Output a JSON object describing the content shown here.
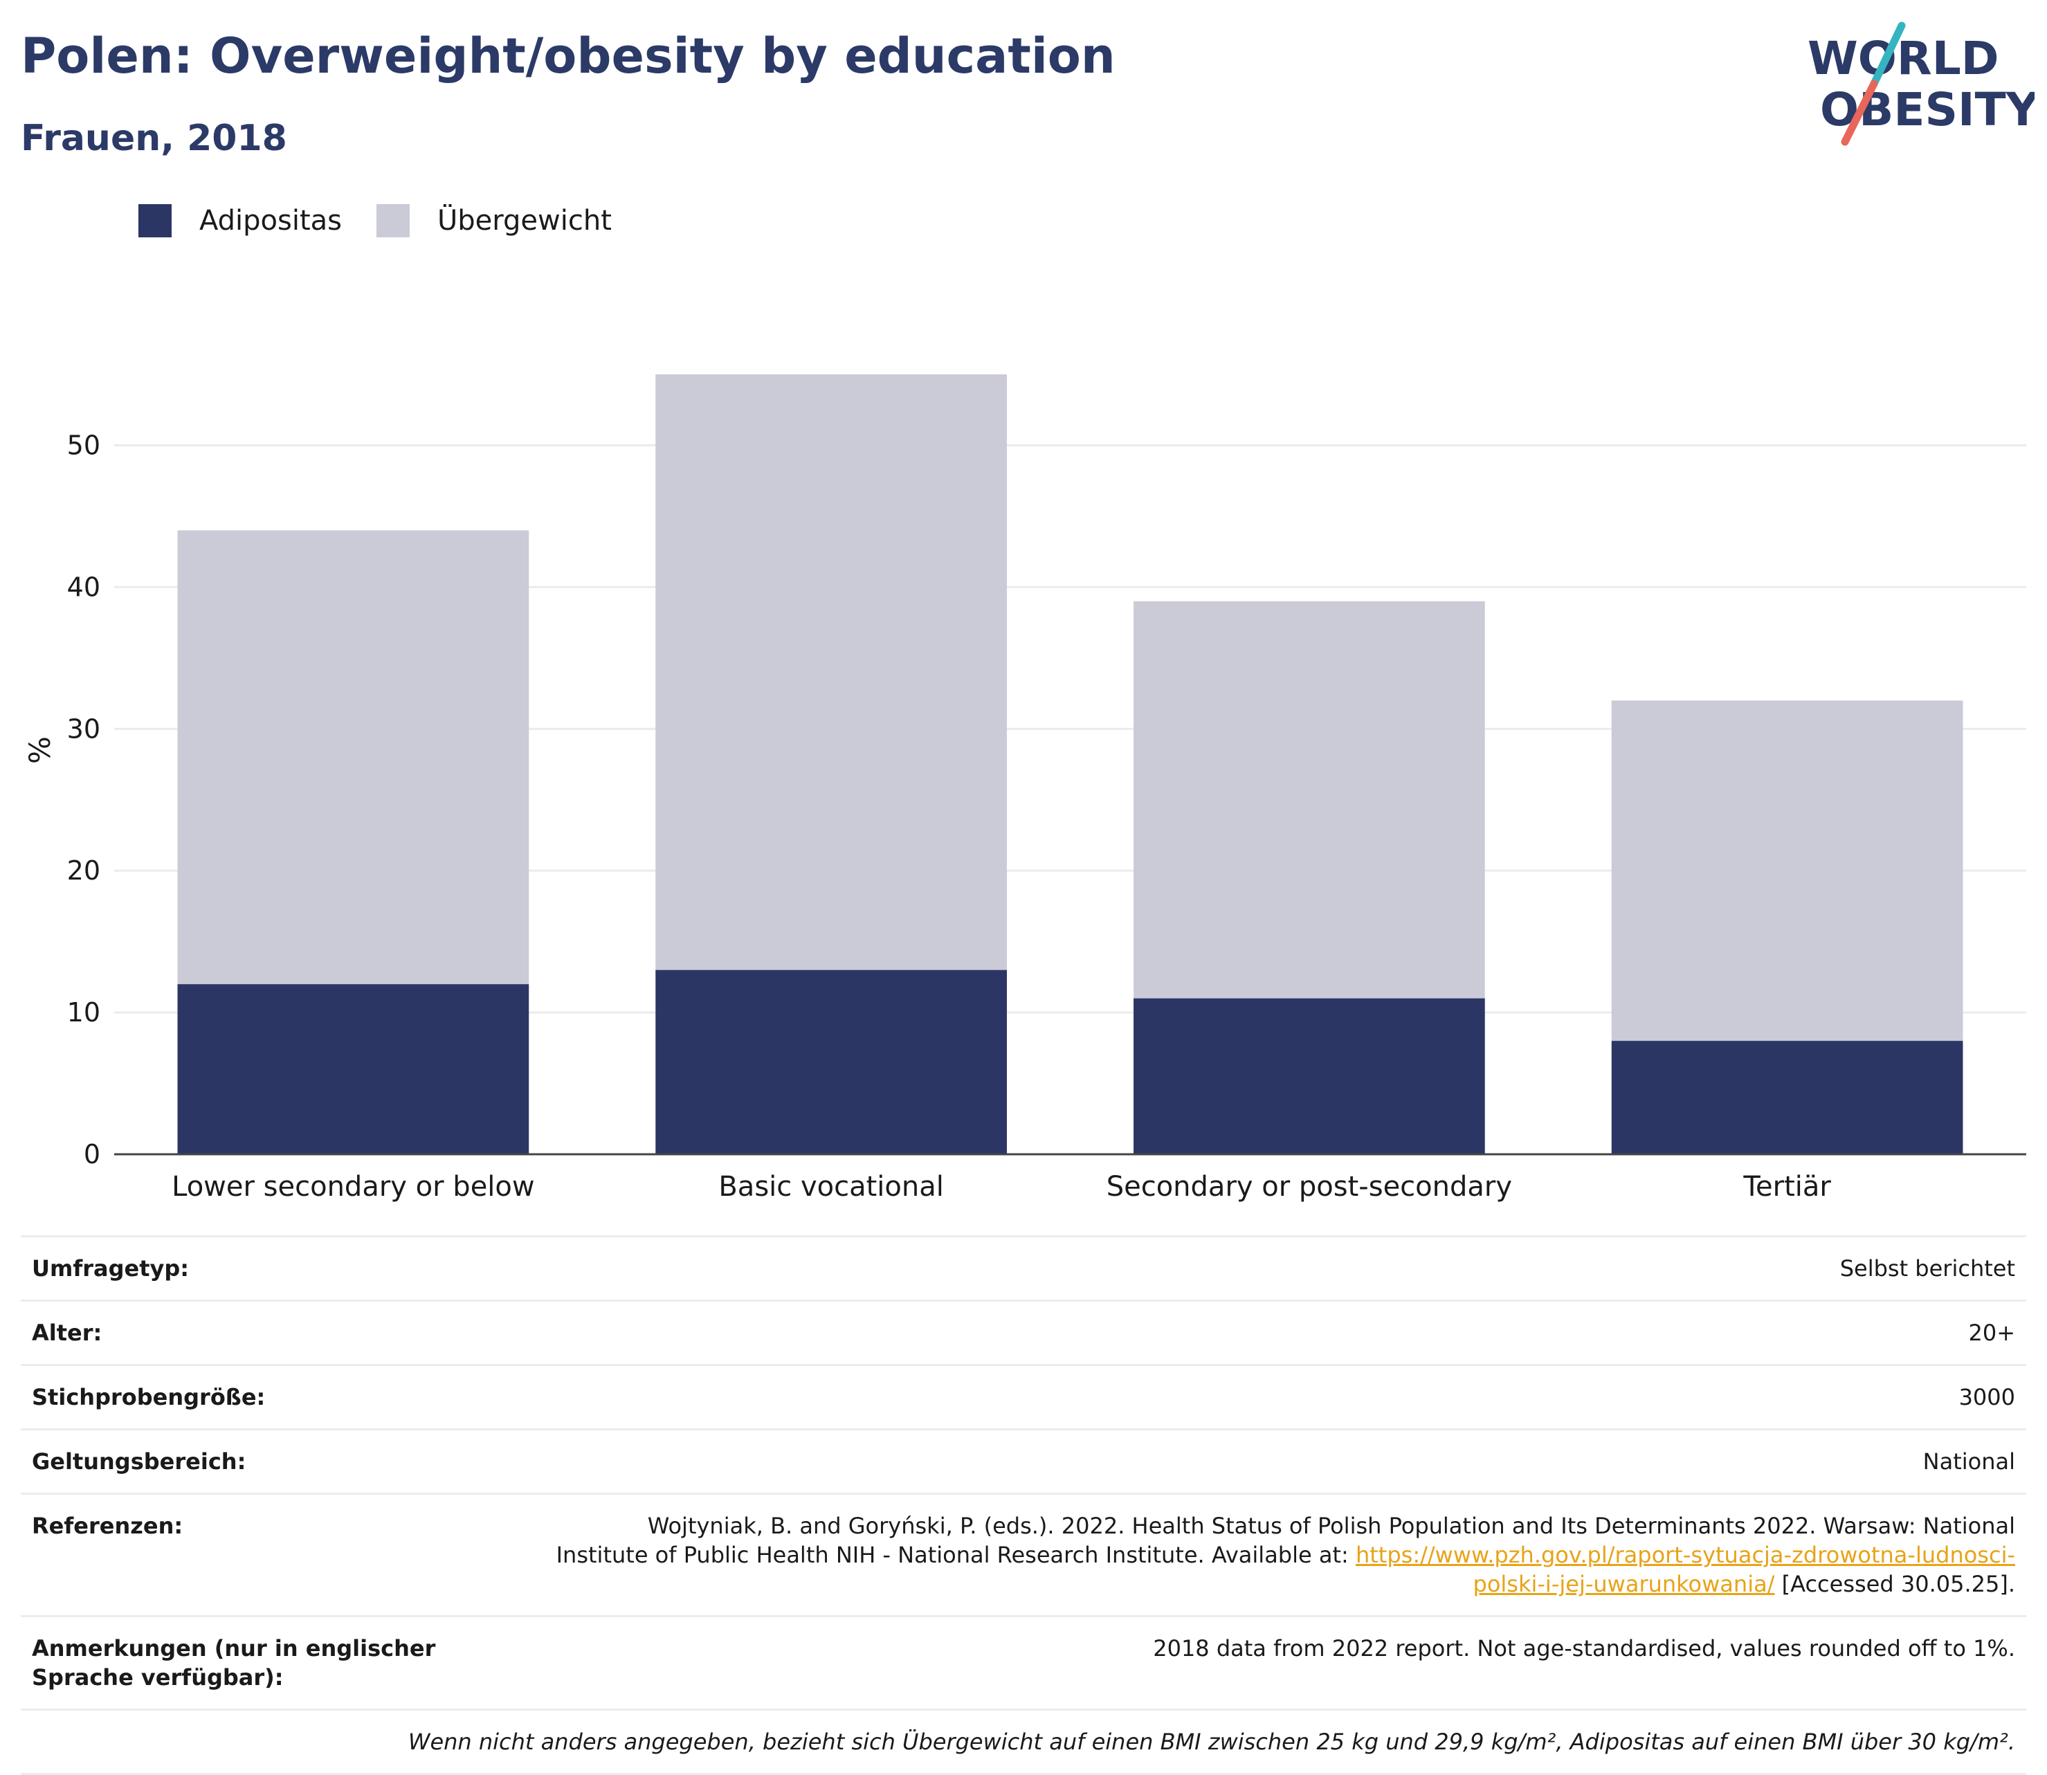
{
  "header": {
    "title": "Polen: Overweight/obesity by education",
    "subtitle": "Frauen, 2018"
  },
  "logo": {
    "line1": "WORLD",
    "line2": "OBESITY"
  },
  "colors": {
    "obesity": "#2b3664",
    "overweight": "#cacbd7",
    "title": "#2b3a67",
    "link": "#e8a317"
  },
  "chart_data": {
    "type": "bar",
    "stacked": true,
    "categories": [
      "Lower secondary or below",
      "Basic vocational",
      "Secondary or post-secondary",
      "Tertiär"
    ],
    "series": [
      {
        "name": "Adipositas",
        "values": [
          12,
          13,
          11,
          8
        ]
      },
      {
        "name": "Übergewicht",
        "values": [
          32,
          42,
          28,
          24
        ]
      }
    ],
    "ylabel": "%",
    "ylim": [
      0,
      57
    ],
    "yticks": [
      0,
      10,
      20,
      30,
      40,
      50
    ],
    "grid": true,
    "legend": "top-left"
  },
  "info": {
    "survey_type": {
      "label": "Umfragetyp:",
      "value": "Selbst berichtet"
    },
    "age": {
      "label": "Alter:",
      "value": "20+"
    },
    "sample_size": {
      "label": "Stichprobengröße:",
      "value": "3000"
    },
    "scope": {
      "label": "Geltungsbereich:",
      "value": "National"
    },
    "references": {
      "label": "Referenzen:",
      "text": "Wojtyniak, B. and Goryński, P. (eds.). 2022. Health Status of Polish Population and Its Determinants 2022. Warsaw: National Institute of Public Health NIH - National Research Institute. Available at: ",
      "link": "https://www.pzh.gov.pl/raport-sytuacja-zdrowotna-ludnosci-polski-i-jej-uwarunkowania/",
      "suffix": " [Accessed 30.05.25]."
    },
    "notes": {
      "label": "Anmerkungen (nur in englischer Sprache verfügbar):",
      "value": "2018 data from 2022 report. Not age-standardised, values rounded off to 1%."
    },
    "footnote": "Wenn nicht anders angegeben, bezieht sich Übergewicht auf einen BMI zwischen 25 kg und 29,9 kg/m², Adipositas auf einen BMI über 30 kg/m²."
  }
}
